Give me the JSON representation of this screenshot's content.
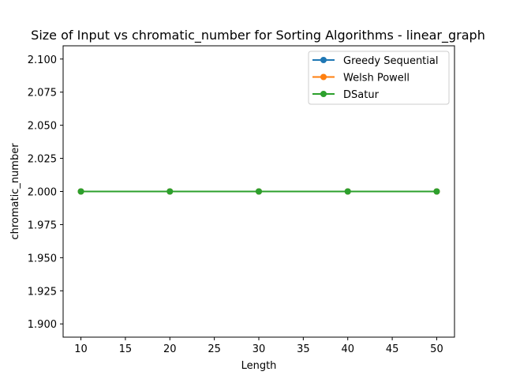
{
  "chart_data": {
    "type": "line",
    "title": "Size of Input vs chromatic_number for Sorting Algorithms - linear_graph",
    "xlabel": "Length",
    "ylabel": "chromatic_number",
    "x": [
      10,
      20,
      30,
      40,
      50
    ],
    "xlim": [
      8,
      52
    ],
    "ylim": [
      1.89,
      2.11
    ],
    "xticks": [
      10,
      15,
      20,
      25,
      30,
      35,
      40,
      45,
      50
    ],
    "xtick_labels": [
      "10",
      "15",
      "20",
      "25",
      "30",
      "35",
      "40",
      "45",
      "50"
    ],
    "yticks": [
      1.9,
      1.925,
      1.95,
      1.975,
      2.0,
      2.025,
      2.05,
      2.075,
      2.1
    ],
    "ytick_labels": [
      "1.900",
      "1.925",
      "1.950",
      "1.975",
      "2.000",
      "2.025",
      "2.050",
      "2.075",
      "2.100"
    ],
    "grid": false,
    "legend_position": "top-right",
    "series": [
      {
        "name": "Greedy Sequential",
        "values": [
          2,
          2,
          2,
          2,
          2
        ],
        "color": "#1f77b4",
        "marker": "circle"
      },
      {
        "name": "Welsh Powell",
        "values": [
          2,
          2,
          2,
          2,
          2
        ],
        "color": "#ff7f0e",
        "marker": "circle"
      },
      {
        "name": "DSatur",
        "values": [
          2,
          2,
          2,
          2,
          2
        ],
        "color": "#2ca02c",
        "marker": "circle"
      }
    ]
  }
}
